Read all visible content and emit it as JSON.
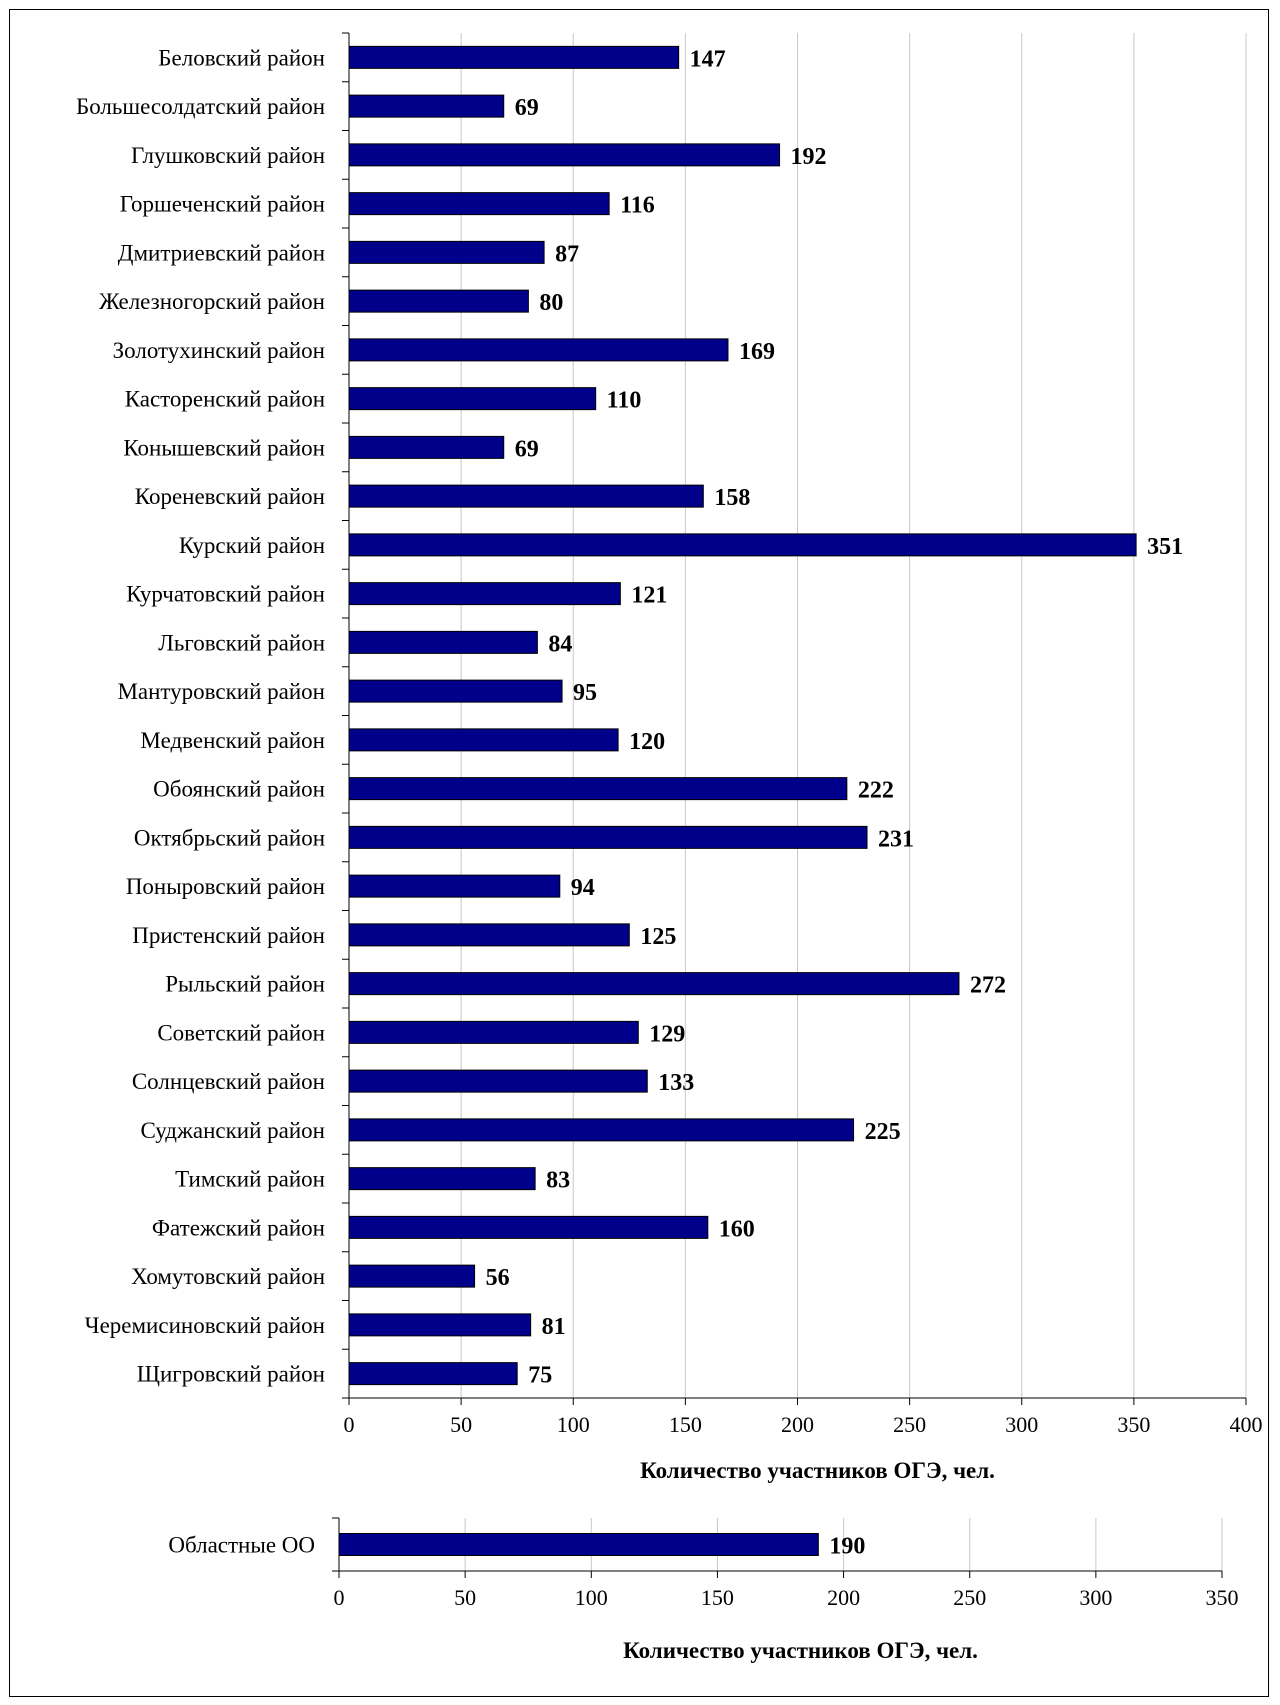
{
  "chart_data": [
    {
      "type": "bar",
      "orientation": "horizontal",
      "categories": [
        "Беловский район",
        "Большесолдатский район",
        "Глушковский район",
        "Горшеченский район",
        "Дмитриевский район",
        "Железногорский район",
        "Золотухинский район",
        "Касторенский район",
        "Конышевский район",
        "Кореневский  район",
        "Курский район",
        "Курчатовский район",
        "Льговский район",
        "Мантуровский район",
        "Медвенский район",
        "Обоянский район",
        "Октябрьский район",
        "Поныровский район",
        "Пристенский район",
        "Рыльский район",
        "Советский район",
        "Солнцевский район",
        "Суджанский район",
        "Тимский район",
        "Фатежский район",
        "Хомутовский район",
        "Черемисиновский район",
        "Щигровский район"
      ],
      "values": [
        147,
        69,
        192,
        116,
        87,
        80,
        169,
        110,
        69,
        158,
        351,
        121,
        84,
        95,
        120,
        222,
        231,
        94,
        125,
        272,
        129,
        133,
        225,
        83,
        160,
        56,
        81,
        75
      ],
      "xlabel": "Количество участников  ОГЭ, чел.",
      "xlim": [
        0,
        400
      ],
      "xticks": [
        0,
        50,
        100,
        150,
        200,
        250,
        300,
        350,
        400
      ],
      "grid": "vertical",
      "bar_color": "#00008b",
      "data_labels": true
    },
    {
      "type": "bar",
      "orientation": "horizontal",
      "categories": [
        "Областные ОО"
      ],
      "values": [
        190
      ],
      "xlabel": "Количество участников  ОГЭ, чел.",
      "xlim": [
        0,
        350
      ],
      "xticks": [
        0,
        50,
        100,
        150,
        200,
        250,
        300,
        350
      ],
      "grid": "vertical",
      "bar_color": "#00008b",
      "data_labels": true
    }
  ]
}
